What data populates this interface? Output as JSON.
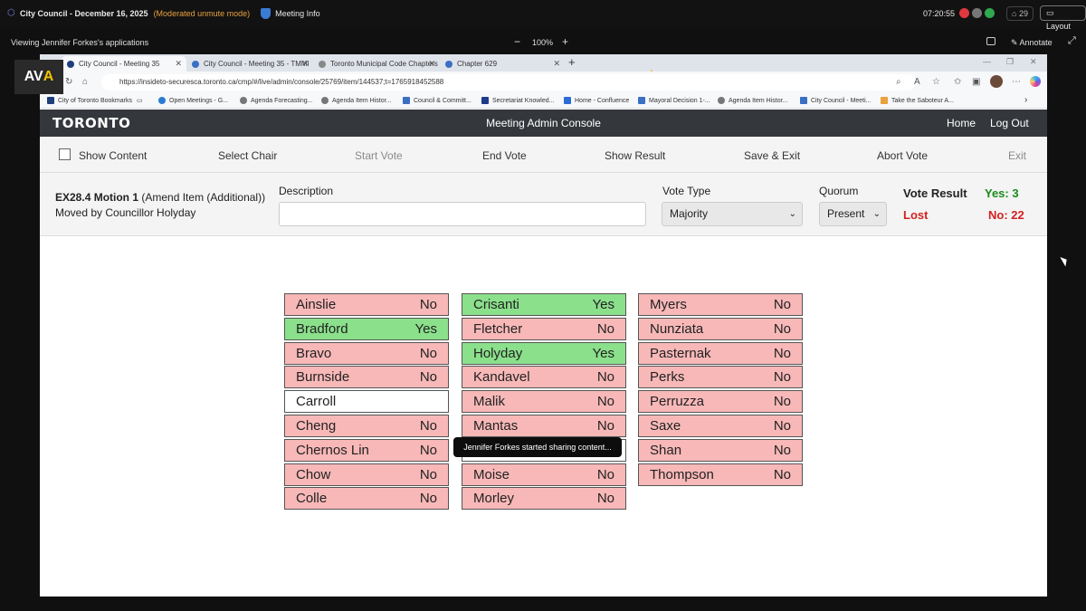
{
  "topbar": {
    "meeting_title": "City Council - December 16, 2025",
    "mode": "(Moderated unmute mode)",
    "meeting_info": "Meeting Info",
    "clock": "07:20:55",
    "participants": "29",
    "layout": "Layout"
  },
  "viewbar": {
    "viewing": "Viewing Jennifer Forkes's applications",
    "zoom": "100%",
    "annotate": "Annotate"
  },
  "logo": {
    "left": "AV",
    "right": "A"
  },
  "browser": {
    "tabs": [
      "City Council - Meeting 35",
      "City Council - Meeting 35 - TMMI",
      "Toronto Municipal Code Chapters",
      "Chapter 629"
    ],
    "url": "https://insideto-securesca.toronto.ca/cmp/#/live/admin/console/25769/item/144537;t=1765918452588",
    "bookmarks": [
      "City of Toronto Bookmarks",
      "Open Meetings - G...",
      "Agenda Forecasting...",
      "Agenda Item Histor...",
      "Council & Committ...",
      "Secretariat Knowled...",
      "Home - Confluence",
      "Mayoral Decision 1-...",
      "Agenda Item Histor...",
      "City Council - Meeti...",
      "Take the Saboteur A..."
    ]
  },
  "app": {
    "logo": "TORONTO",
    "title": "Meeting Admin Console",
    "home": "Home",
    "logout": "Log Out"
  },
  "toolbar": {
    "show_content": "Show Content",
    "select_chair": "Select Chair",
    "start_vote": "Start Vote",
    "end_vote": "End Vote",
    "show_result": "Show Result",
    "save_exit": "Save & Exit",
    "abort_vote": "Abort Vote",
    "exit": "Exit"
  },
  "motion": {
    "item": "EX28.4 Motion 1",
    "item_detail": "(Amend Item (Additional))",
    "moved_by": "Moved by Councillor Holyday",
    "description_label": "Description",
    "description_value": "",
    "vote_type_label": "Vote Type",
    "vote_type": "Majority",
    "quorum_label": "Quorum",
    "quorum": "Present",
    "vote_result_label": "Vote Result",
    "result": "Lost",
    "yes_count": "Yes: 3",
    "no_count": "No: 22"
  },
  "votes": [
    [
      {
        "name": "Ainslie",
        "vote": "No"
      },
      {
        "name": "Bradford",
        "vote": "Yes"
      },
      {
        "name": "Bravo",
        "vote": "No"
      },
      {
        "name": "Burnside",
        "vote": "No"
      },
      {
        "name": "Carroll",
        "vote": ""
      },
      {
        "name": "Cheng",
        "vote": "No"
      },
      {
        "name": "Chernos Lin",
        "vote": "No"
      },
      {
        "name": "Chow",
        "vote": "No"
      },
      {
        "name": "Colle",
        "vote": "No"
      }
    ],
    [
      {
        "name": "Crisanti",
        "vote": "Yes"
      },
      {
        "name": "Fletcher",
        "vote": "No"
      },
      {
        "name": "Holyday",
        "vote": "Yes"
      },
      {
        "name": "Kandavel",
        "vote": "No"
      },
      {
        "name": "Malik",
        "vote": "No"
      },
      {
        "name": "Mantas",
        "vote": "No"
      },
      {
        "name": "",
        "vote": ""
      },
      {
        "name": "Moise",
        "vote": "No"
      },
      {
        "name": "Morley",
        "vote": "No"
      }
    ],
    [
      {
        "name": "Myers",
        "vote": "No"
      },
      {
        "name": "Nunziata",
        "vote": "No"
      },
      {
        "name": "Pasternak",
        "vote": "No"
      },
      {
        "name": "Perks",
        "vote": "No"
      },
      {
        "name": "Perruzza",
        "vote": "No"
      },
      {
        "name": "Saxe",
        "vote": "No"
      },
      {
        "name": "Shan",
        "vote": "No"
      },
      {
        "name": "Thompson",
        "vote": "No"
      }
    ]
  ],
  "toast": "Jennifer Forkes started sharing content..."
}
